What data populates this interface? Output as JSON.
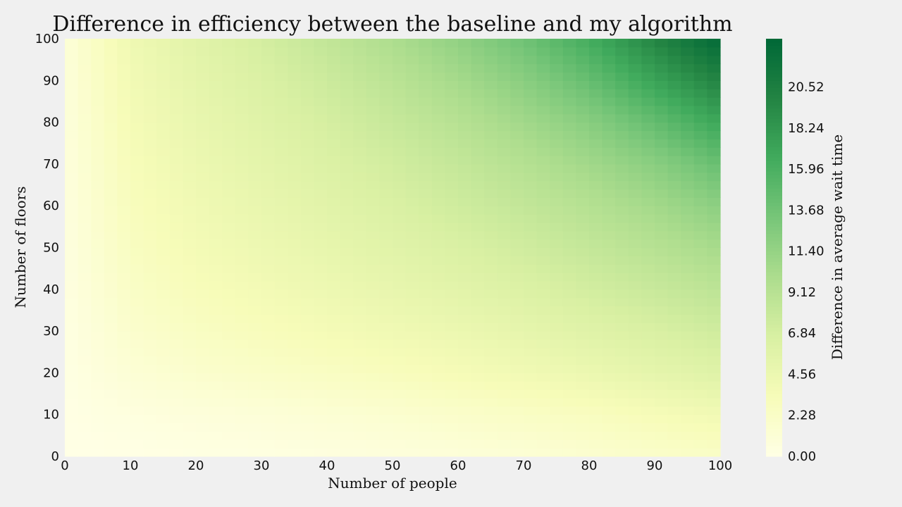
{
  "chart_data": {
    "type": "heatmap",
    "title": "Difference in efficiency between the baseline and my algorithm",
    "xlabel": "Number of people",
    "ylabel": "Number of floors",
    "colorbar_label": "Difference in average wait time",
    "xlim": [
      0,
      100
    ],
    "ylim": [
      0,
      100
    ],
    "x_ticks": [
      "0",
      "10",
      "20",
      "30",
      "40",
      "50",
      "60",
      "70",
      "80",
      "90",
      "100"
    ],
    "y_ticks": [
      "0",
      "10",
      "20",
      "30",
      "40",
      "50",
      "60",
      "70",
      "80",
      "90",
      "100"
    ],
    "colorbar_range": [
      0,
      23.2
    ],
    "colorbar_ticks": [
      "0.00",
      "2.28",
      "4.56",
      "6.84",
      "9.12",
      "11.40",
      "13.68",
      "15.96",
      "18.24",
      "20.52"
    ],
    "colormap": "YlGn",
    "grid": false,
    "x": [
      0,
      10,
      20,
      30,
      40,
      50,
      60,
      70,
      80,
      90,
      100
    ],
    "y": [
      0,
      10,
      20,
      30,
      40,
      50,
      60,
      70,
      80,
      90,
      100
    ],
    "z": [
      [
        0.0,
        0.0,
        0.2,
        0.3,
        0.5,
        0.7,
        0.9,
        1.2,
        1.6,
        2.0,
        2.3
      ],
      [
        0.1,
        0.5,
        0.8,
        1.0,
        1.3,
        1.6,
        2.0,
        2.4,
        2.8,
        3.4,
        4.0
      ],
      [
        0.2,
        1.2,
        1.8,
        2.2,
        2.6,
        3.0,
        3.5,
        4.0,
        4.6,
        5.3,
        6.0
      ],
      [
        0.3,
        1.8,
        2.6,
        3.1,
        3.6,
        4.1,
        4.6,
        5.2,
        5.9,
        6.6,
        7.4
      ],
      [
        0.4,
        2.3,
        3.2,
        3.8,
        4.4,
        5.0,
        5.6,
        6.3,
        7.1,
        7.9,
        8.8
      ],
      [
        0.5,
        2.7,
        3.7,
        4.4,
        5.1,
        5.8,
        6.5,
        7.3,
        8.2,
        9.2,
        10.3
      ],
      [
        0.6,
        3.0,
        4.1,
        4.9,
        5.7,
        6.5,
        7.4,
        8.3,
        9.3,
        10.5,
        12.0
      ],
      [
        0.7,
        3.3,
        4.5,
        5.4,
        6.3,
        7.2,
        8.2,
        9.3,
        10.6,
        12.1,
        14.2
      ],
      [
        0.8,
        3.6,
        4.9,
        5.9,
        6.9,
        8.0,
        9.2,
        10.6,
        12.2,
        14.4,
        17.0
      ],
      [
        0.9,
        3.9,
        5.3,
        6.4,
        7.6,
        8.9,
        10.4,
        12.1,
        14.3,
        17.2,
        20.0
      ],
      [
        1.0,
        4.2,
        5.7,
        7.0,
        8.4,
        9.9,
        11.7,
        13.8,
        16.4,
        19.8,
        23.0
      ]
    ]
  }
}
